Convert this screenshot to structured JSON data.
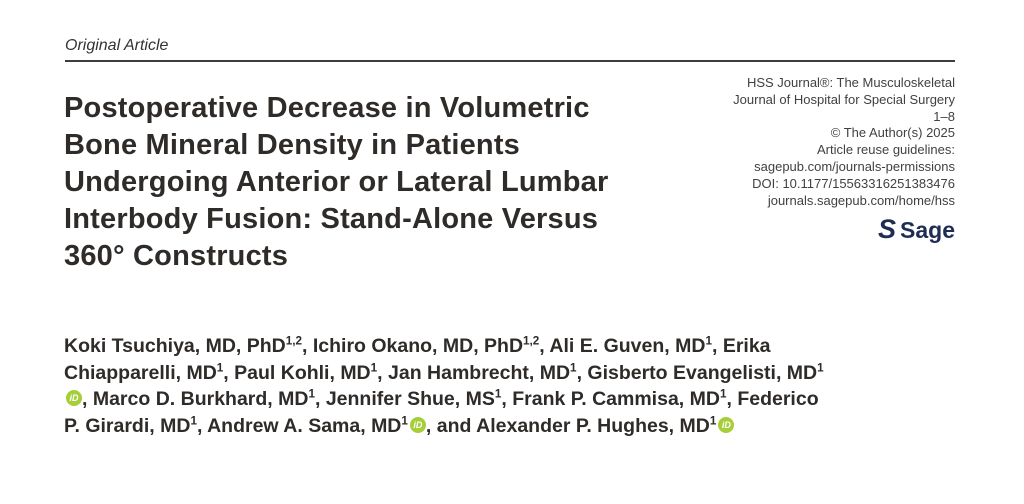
{
  "kicker": {
    "label": "Original Article"
  },
  "title": {
    "lines": [
      "Postoperative Decrease in Volumetric",
      "Bone Mineral Density in Patients",
      "Undergoing Anterior or Lateral Lumbar",
      "Interbody Fusion: Stand-Alone Versus",
      "360° Constructs"
    ],
    "full_text": "Postoperative Decrease in Volumetric Bone Mineral Density in Patients Undergoing Anterior or Lateral Lumbar Interbody Fusion: Stand-Alone Versus 360° Constructs"
  },
  "journal_info": {
    "lines": [
      "HSS Journal®: The Musculoskeletal",
      "Journal of Hospital for Special Surgery",
      "1–8",
      "© The Author(s) 2025",
      "Article reuse guidelines:",
      "sagepub.com/journals-permissions",
      "DOI: 10.1177/15563316251383476",
      "journals.sagepub.com/home/hss"
    ],
    "publisher_mark": "S",
    "publisher_name": "Sage"
  },
  "authors": {
    "list": [
      {
        "name": "Koki Tsuchiya",
        "degrees": "MD, PhD",
        "affiliation": "1,2",
        "orcid": false
      },
      {
        "name": "Ichiro Okano",
        "degrees": "MD, PhD",
        "affiliation": "1,2",
        "orcid": false
      },
      {
        "name": "Ali E. Guven",
        "degrees": "MD",
        "affiliation": "1",
        "orcid": false
      },
      {
        "name": "Erika Chiapparelli",
        "degrees": "MD",
        "affiliation": "1",
        "orcid": false
      },
      {
        "name": "Paul Kohli",
        "degrees": "MD",
        "affiliation": "1",
        "orcid": false
      },
      {
        "name": "Jan Hambrecht",
        "degrees": "MD",
        "affiliation": "1",
        "orcid": false
      },
      {
        "name": "Gisberto Evangelisti",
        "degrees": "MD",
        "affiliation": "1",
        "orcid": true
      },
      {
        "name": "Marco D. Burkhard",
        "degrees": "MD",
        "affiliation": "1",
        "orcid": false
      },
      {
        "name": "Jennifer Shue",
        "degrees": "MS",
        "affiliation": "1",
        "orcid": false
      },
      {
        "name": "Frank P. Cammisa",
        "degrees": "MD",
        "affiliation": "1",
        "orcid": false
      },
      {
        "name": "Federico P. Girardi",
        "degrees": "MD",
        "affiliation": "1",
        "orcid": false
      },
      {
        "name": "Andrew A. Sama",
        "degrees": "MD",
        "affiliation": "1",
        "orcid": true
      },
      {
        "name": "Alexander P. Hughes",
        "degrees": "MD",
        "affiliation": "1",
        "orcid": true
      }
    ],
    "separator": ", ",
    "last_separator": ", and ",
    "orcid_icon_label": "iD"
  },
  "colors": {
    "text_dark": "#2e2b28",
    "journal_info_gray": "#414141",
    "rule_gray": "#3d3d3d",
    "orcid_green": "#a6ce39",
    "sage_navy": "#1f2d54"
  }
}
